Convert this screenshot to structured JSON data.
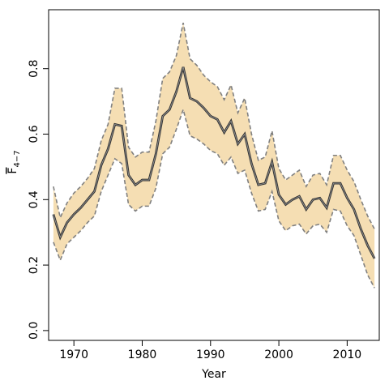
{
  "chart_data": {
    "type": "line",
    "title": "",
    "xlabel": "Year",
    "ylabel_main": "F",
    "ylabel_sub": "4−7",
    "xlim": [
      1966.3,
      2014.7
    ],
    "ylim": [
      -0.03,
      0.98
    ],
    "x_ticks": [
      1970,
      1980,
      1990,
      2000,
      2010
    ],
    "x_tick_labels": [
      "1970",
      "1980",
      "1990",
      "2000",
      "2010"
    ],
    "y_ticks": [
      0.0,
      0.2,
      0.4,
      0.6,
      0.8
    ],
    "y_tick_labels": [
      "0.0",
      "0.2",
      "0.4",
      "0.6",
      "0.8"
    ],
    "grid": false,
    "legend": "none",
    "colors": {
      "band": "#f5deb3",
      "band_edge": "#808080",
      "line": "#333333"
    },
    "x": [
      1967,
      1968,
      1969,
      1970,
      1971,
      1972,
      1973,
      1974,
      1975,
      1976,
      1977,
      1978,
      1979,
      1980,
      1981,
      1982,
      1983,
      1984,
      1985,
      1986,
      1987,
      1988,
      1989,
      1990,
      1991,
      1992,
      1993,
      1994,
      1995,
      1996,
      1997,
      1998,
      1999,
      2000,
      2001,
      2002,
      2003,
      2004,
      2005,
      2006,
      2007,
      2008,
      2009,
      2010,
      2011,
      2012,
      2013,
      2014
    ],
    "series": [
      {
        "role": "estimate",
        "values": [
          0.355,
          0.285,
          0.33,
          0.355,
          0.375,
          0.4,
          0.425,
          0.505,
          0.555,
          0.63,
          0.625,
          0.475,
          0.445,
          0.46,
          0.46,
          0.54,
          0.655,
          0.675,
          0.73,
          0.805,
          0.71,
          0.7,
          0.68,
          0.655,
          0.645,
          0.605,
          0.64,
          0.57,
          0.6,
          0.51,
          0.445,
          0.45,
          0.515,
          0.415,
          0.385,
          0.4,
          0.41,
          0.37,
          0.4,
          0.405,
          0.375,
          0.45,
          0.45,
          0.405,
          0.37,
          0.31,
          0.26,
          0.22
        ]
      },
      {
        "role": "upper",
        "values": [
          0.44,
          0.345,
          0.39,
          0.42,
          0.44,
          0.465,
          0.495,
          0.58,
          0.63,
          0.74,
          0.74,
          0.56,
          0.53,
          0.545,
          0.545,
          0.64,
          0.77,
          0.79,
          0.84,
          0.94,
          0.83,
          0.81,
          0.78,
          0.76,
          0.745,
          0.705,
          0.75,
          0.665,
          0.71,
          0.6,
          0.52,
          0.53,
          0.61,
          0.495,
          0.46,
          0.475,
          0.49,
          0.44,
          0.475,
          0.48,
          0.445,
          0.535,
          0.535,
          0.49,
          0.455,
          0.4,
          0.35,
          0.31
        ]
      },
      {
        "role": "lower",
        "values": [
          0.27,
          0.215,
          0.265,
          0.285,
          0.305,
          0.33,
          0.35,
          0.425,
          0.475,
          0.525,
          0.51,
          0.385,
          0.365,
          0.38,
          0.38,
          0.435,
          0.54,
          0.56,
          0.615,
          0.675,
          0.595,
          0.585,
          0.57,
          0.55,
          0.54,
          0.505,
          0.53,
          0.48,
          0.49,
          0.42,
          0.365,
          0.37,
          0.425,
          0.335,
          0.305,
          0.32,
          0.325,
          0.295,
          0.32,
          0.325,
          0.3,
          0.37,
          0.365,
          0.32,
          0.29,
          0.23,
          0.17,
          0.13
        ]
      }
    ]
  }
}
